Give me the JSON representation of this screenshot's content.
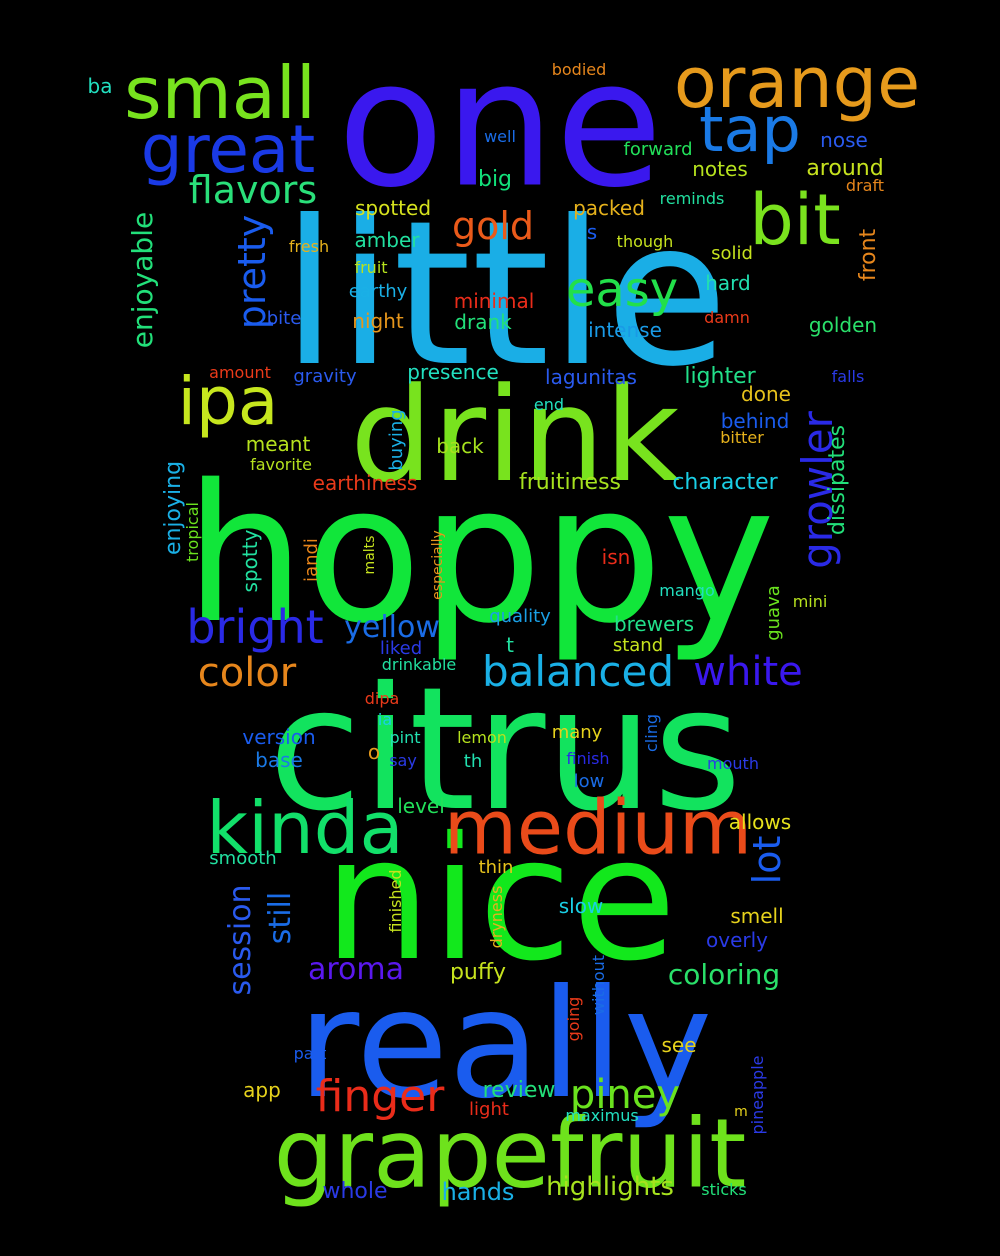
{
  "words": [
    {
      "text": "little",
      "color": "#1aaee6",
      "size": 200,
      "vertical": false
    },
    {
      "text": "hoppy",
      "color": "#11e63a",
      "size": 190,
      "vertical": false
    },
    {
      "text": "citrus",
      "color": "#12e35e",
      "size": 170,
      "vertical": false
    },
    {
      "text": "one",
      "color": "#3a18ee",
      "size": 175,
      "vertical": false
    },
    {
      "text": "nice",
      "color": "#12e81c",
      "size": 170,
      "vertical": false
    },
    {
      "text": "really",
      "color": "#1a5cee",
      "size": 150,
      "vertical": false
    },
    {
      "text": "drink",
      "color": "#78e31e",
      "size": 130,
      "vertical": false
    },
    {
      "text": "grapefruit",
      "color": "#6ee21c",
      "size": 95,
      "vertical": false
    },
    {
      "text": "medium",
      "color": "#ea4b1a",
      "size": 75,
      "vertical": false
    },
    {
      "text": "kinda",
      "color": "#12e06a",
      "size": 72,
      "vertical": false
    },
    {
      "text": "small",
      "color": "#78e31e",
      "size": 72,
      "vertical": false
    },
    {
      "text": "orange",
      "color": "#e69a1c",
      "size": 70,
      "vertical": false
    },
    {
      "text": "great",
      "color": "#1a3ae6",
      "size": 66,
      "vertical": false
    },
    {
      "text": "bit",
      "color": "#7ae21e",
      "size": 70,
      "vertical": false
    },
    {
      "text": "ipa",
      "color": "#c6e61e",
      "size": 66,
      "vertical": false
    },
    {
      "text": "tap",
      "color": "#1a7ae6",
      "size": 62,
      "vertical": false
    },
    {
      "text": "easy",
      "color": "#22e04a",
      "size": 48,
      "vertical": false
    },
    {
      "text": "bright",
      "color": "#2a2ae6",
      "size": 46,
      "vertical": false
    },
    {
      "text": "balanced",
      "color": "#1ab0e6",
      "size": 42,
      "vertical": false
    },
    {
      "text": "finger",
      "color": "#ea2c1a",
      "size": 44,
      "vertical": false
    },
    {
      "text": "color",
      "color": "#e6861c",
      "size": 40,
      "vertical": false
    },
    {
      "text": "white",
      "color": "#3a18ee",
      "size": 40,
      "vertical": false
    },
    {
      "text": "piney",
      "color": "#6ae21e",
      "size": 40,
      "vertical": false
    },
    {
      "text": "flavors",
      "color": "#2ae07a",
      "size": 38,
      "vertical": false
    },
    {
      "text": "gold",
      "color": "#ea5a1a",
      "size": 38,
      "vertical": false
    },
    {
      "text": "pretty",
      "color": "#1a5cee",
      "size": 38,
      "vertical": true
    },
    {
      "text": "growler",
      "color": "#2a2ae6",
      "size": 42,
      "vertical": true
    },
    {
      "text": "yellow",
      "color": "#1a6ce6",
      "size": 30,
      "vertical": false
    },
    {
      "text": "aroma",
      "color": "#5a18ee",
      "size": 30,
      "vertical": false
    },
    {
      "text": "session",
      "color": "#2a5aee",
      "size": 30,
      "vertical": true
    },
    {
      "text": "lot",
      "color": "#1a5cee",
      "size": 38,
      "vertical": true
    },
    {
      "text": "still",
      "color": "#1a6ce6",
      "size": 30,
      "vertical": true
    },
    {
      "text": "coloring",
      "color": "#2ae06a",
      "size": 28,
      "vertical": false
    },
    {
      "text": "enjoyable",
      "color": "#22e07a",
      "size": 28,
      "vertical": true
    },
    {
      "text": "highlights",
      "color": "#a6e21e",
      "size": 26,
      "vertical": false
    },
    {
      "text": "hands",
      "color": "#1ab0e6",
      "size": 24,
      "vertical": false
    },
    {
      "text": "whole",
      "color": "#2a3ae6",
      "size": 22,
      "vertical": false
    },
    {
      "text": "review",
      "color": "#22e07a",
      "size": 22,
      "vertical": false
    },
    {
      "text": "puffy",
      "color": "#c6e21e",
      "size": 22,
      "vertical": false
    },
    {
      "text": "fruitiness",
      "color": "#a6e21e",
      "size": 22,
      "vertical": false
    },
    {
      "text": "character",
      "color": "#1acfe6",
      "size": 22,
      "vertical": false
    },
    {
      "text": "earthiness",
      "color": "#ea3a1a",
      "size": 20,
      "vertical": false
    },
    {
      "text": "lighter",
      "color": "#22e08a",
      "size": 22,
      "vertical": false
    },
    {
      "text": "lagunitas",
      "color": "#2a5aee",
      "size": 20,
      "vertical": false
    },
    {
      "text": "around",
      "color": "#c6e21e",
      "size": 22,
      "vertical": false
    },
    {
      "text": "notes",
      "color": "#b6e21e",
      "size": 20,
      "vertical": false
    },
    {
      "text": "big",
      "color": "#12e07a",
      "size": 22,
      "vertical": false
    },
    {
      "text": "spotted",
      "color": "#d6e21e",
      "size": 20,
      "vertical": false
    },
    {
      "text": "packed",
      "color": "#e6b21c",
      "size": 20,
      "vertical": false
    },
    {
      "text": "amber",
      "color": "#22e0a0",
      "size": 20,
      "vertical": false
    },
    {
      "text": "hard",
      "color": "#22e0b0",
      "size": 20,
      "vertical": false
    },
    {
      "text": "night",
      "color": "#e6961c",
      "size": 20,
      "vertical": false
    },
    {
      "text": "drank",
      "color": "#22e07a",
      "size": 20,
      "vertical": false
    },
    {
      "text": "intense",
      "color": "#1a9ae6",
      "size": 20,
      "vertical": false
    },
    {
      "text": "golden",
      "color": "#2ae06a",
      "size": 20,
      "vertical": false
    },
    {
      "text": "minimal",
      "color": "#ea2c1a",
      "size": 20,
      "vertical": false
    },
    {
      "text": "presence",
      "color": "#22e0c0",
      "size": 20,
      "vertical": false
    },
    {
      "text": "meant",
      "color": "#b6e21e",
      "size": 20,
      "vertical": false
    },
    {
      "text": "back",
      "color": "#a6e21e",
      "size": 20,
      "vertical": false
    },
    {
      "text": "done",
      "color": "#e6c21c",
      "size": 20,
      "vertical": false
    },
    {
      "text": "behind",
      "color": "#1a5cee",
      "size": 20,
      "vertical": false
    },
    {
      "text": "smell",
      "color": "#e6d21c",
      "size": 20,
      "vertical": false
    },
    {
      "text": "overly",
      "color": "#2a3ae6",
      "size": 20,
      "vertical": false
    },
    {
      "text": "allows",
      "color": "#e6e21c",
      "size": 20,
      "vertical": false
    },
    {
      "text": "slow",
      "color": "#1ad0e6",
      "size": 20,
      "vertical": false
    },
    {
      "text": "see",
      "color": "#e6d21c",
      "size": 20,
      "vertical": false
    },
    {
      "text": "app",
      "color": "#e6d21c",
      "size": 20,
      "vertical": false
    },
    {
      "text": "level",
      "color": "#22e05a",
      "size": 20,
      "vertical": false
    },
    {
      "text": "version",
      "color": "#1a5cee",
      "size": 20,
      "vertical": false
    },
    {
      "text": "base",
      "color": "#1a7ae6",
      "size": 20,
      "vertical": false
    },
    {
      "text": "brewers",
      "color": "#22e08a",
      "size": 20,
      "vertical": false
    },
    {
      "text": "quality",
      "color": "#1aa0e6",
      "size": 18,
      "vertical": false
    },
    {
      "text": "liked",
      "color": "#2a3ae6",
      "size": 18,
      "vertical": false
    },
    {
      "text": "isn",
      "color": "#ea2c1a",
      "size": 20,
      "vertical": false
    },
    {
      "text": "t",
      "color": "#22e0a0",
      "size": 20,
      "vertical": false
    },
    {
      "text": "o",
      "color": "#e69a1c",
      "size": 20,
      "vertical": false
    },
    {
      "text": "s",
      "color": "#1a5cee",
      "size": 20,
      "vertical": false
    },
    {
      "text": "smooth",
      "color": "#22e0a0",
      "size": 18,
      "vertical": false
    },
    {
      "text": "thin",
      "color": "#e6c21c",
      "size": 18,
      "vertical": false
    },
    {
      "text": "many",
      "color": "#e6d21c",
      "size": 18,
      "vertical": false
    },
    {
      "text": "low",
      "color": "#1a6ce6",
      "size": 18,
      "vertical": false
    },
    {
      "text": "th",
      "color": "#22e0b0",
      "size": 18,
      "vertical": false
    },
    {
      "text": "stand",
      "color": "#c6e21e",
      "size": 18,
      "vertical": false
    },
    {
      "text": "nose",
      "color": "#2a5aee",
      "size": 20,
      "vertical": false
    },
    {
      "text": "forward",
      "color": "#22e05a",
      "size": 18,
      "vertical": false
    },
    {
      "text": "solid",
      "color": "#c6e21e",
      "size": 18,
      "vertical": false
    },
    {
      "text": "though",
      "color": "#c6e21e",
      "size": 16,
      "vertical": false
    },
    {
      "text": "reminds",
      "color": "#22e0a0",
      "size": 16,
      "vertical": false
    },
    {
      "text": "draft",
      "color": "#e6861c",
      "size": 16,
      "vertical": false
    },
    {
      "text": "fresh",
      "color": "#e6b21c",
      "size": 16,
      "vertical": false
    },
    {
      "text": "fruit",
      "color": "#b6e21e",
      "size": 16,
      "vertical": false
    },
    {
      "text": "earthy",
      "color": "#1ab0e6",
      "size": 18,
      "vertical": false
    },
    {
      "text": "bite",
      "color": "#2a5aee",
      "size": 18,
      "vertical": false
    },
    {
      "text": "damn",
      "color": "#ea3a1a",
      "size": 16,
      "vertical": false
    },
    {
      "text": "falls",
      "color": "#2a3ae6",
      "size": 16,
      "vertical": false
    },
    {
      "text": "amount",
      "color": "#ea3a1a",
      "size": 16,
      "vertical": false
    },
    {
      "text": "gravity",
      "color": "#2a5aee",
      "size": 18,
      "vertical": false
    },
    {
      "text": "end",
      "color": "#22e0c0",
      "size": 16,
      "vertical": false
    },
    {
      "text": "bitter",
      "color": "#e6b21c",
      "size": 16,
      "vertical": false
    },
    {
      "text": "favorite",
      "color": "#b6e21e",
      "size": 16,
      "vertical": false
    },
    {
      "text": "mango",
      "color": "#22e0c0",
      "size": 16,
      "vertical": false
    },
    {
      "text": "mini",
      "color": "#b6e21e",
      "size": 16,
      "vertical": false
    },
    {
      "text": "drinkable",
      "color": "#22e0a0",
      "size": 16,
      "vertical": false
    },
    {
      "text": "dipa",
      "color": "#ea3a1a",
      "size": 16,
      "vertical": false
    },
    {
      "text": "ia",
      "color": "#1acfe6",
      "size": 16,
      "vertical": false
    },
    {
      "text": "pint",
      "color": "#22e0b0",
      "size": 16,
      "vertical": false
    },
    {
      "text": "say",
      "color": "#2a3ae6",
      "size": 16,
      "vertical": false
    },
    {
      "text": "lemon",
      "color": "#b6e21e",
      "size": 16,
      "vertical": false
    },
    {
      "text": "finish",
      "color": "#2a2ae6",
      "size": 16,
      "vertical": false
    },
    {
      "text": "mouth",
      "color": "#2a3ae6",
      "size": 16,
      "vertical": false
    },
    {
      "text": "part",
      "color": "#1a5cee",
      "size": 16,
      "vertical": false
    },
    {
      "text": "light",
      "color": "#ea2c1a",
      "size": 18,
      "vertical": false
    },
    {
      "text": "maximus",
      "color": "#22e0c0",
      "size": 16,
      "vertical": false
    },
    {
      "text": "m",
      "color": "#e6d21c",
      "size": 14,
      "vertical": false
    },
    {
      "text": "sticks",
      "color": "#22e07a",
      "size": 16,
      "vertical": false
    },
    {
      "text": "ba",
      "color": "#22e0c0",
      "size": 20,
      "vertical": false
    },
    {
      "text": "bodied",
      "color": "#e6861c",
      "size": 16,
      "vertical": false
    },
    {
      "text": "well",
      "color": "#1a6ce6",
      "size": 16,
      "vertical": false
    },
    {
      "text": "front",
      "color": "#e6861c",
      "size": 22,
      "vertical": true
    },
    {
      "text": "dissipates",
      "color": "#22e07a",
      "size": 22,
      "vertical": true
    },
    {
      "text": "buying",
      "color": "#1ab0e6",
      "size": 18,
      "vertical": true
    },
    {
      "text": "enjoying",
      "color": "#1ab0e6",
      "size": 22,
      "vertical": true
    },
    {
      "text": "tropical",
      "color": "#6ae21e",
      "size": 16,
      "vertical": true
    },
    {
      "text": "spotty",
      "color": "#22e0a0",
      "size": 20,
      "vertical": true
    },
    {
      "text": "iandi",
      "color": "#ea861a",
      "size": 18,
      "vertical": true
    },
    {
      "text": "malts",
      "color": "#c6e21e",
      "size": 14,
      "vertical": true
    },
    {
      "text": "especially",
      "color": "#e6961c",
      "size": 14,
      "vertical": true
    },
    {
      "text": "guava",
      "color": "#6ae21e",
      "size": 18,
      "vertical": true
    },
    {
      "text": "cling",
      "color": "#1a6ce6",
      "size": 16,
      "vertical": true
    },
    {
      "text": "finished",
      "color": "#c6e21e",
      "size": 16,
      "vertical": true
    },
    {
      "text": "dryness",
      "color": "#e6b21c",
      "size": 16,
      "vertical": true
    },
    {
      "text": "going",
      "color": "#ea3a1a",
      "size": 16,
      "vertical": true
    },
    {
      "text": "without",
      "color": "#1a6ce6",
      "size": 16,
      "vertical": true
    },
    {
      "text": "pineapple",
      "color": "#2a3ae6",
      "size": 16,
      "vertical": true
    }
  ]
}
